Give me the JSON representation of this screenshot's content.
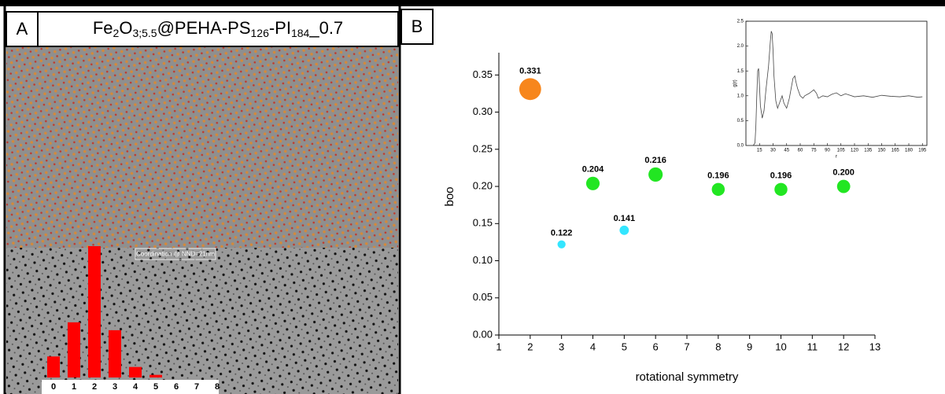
{
  "panels": {
    "a_label": "A",
    "a_title": [
      "Fe",
      "2",
      "O",
      "3;5.5",
      "@PEHA-PS",
      "126",
      "-PI",
      "184",
      "_0.7"
    ],
    "b_label": "B"
  },
  "chart_data": [
    {
      "type": "bar",
      "annotation": "Coordination @ NND=21nm",
      "categories": [
        "0",
        "1",
        "2",
        "3",
        "4",
        "5",
        "6",
        "7",
        "8"
      ],
      "values": [
        0.08,
        0.21,
        0.5,
        0.18,
        0.04,
        0.01,
        0,
        0,
        0
      ],
      "color": "#ff0000"
    },
    {
      "type": "scatter",
      "x_label": "rotational symmetry",
      "y_label": "boo",
      "x": [
        2,
        3,
        4,
        5,
        6,
        8,
        10,
        12
      ],
      "values": [
        0.331,
        0.122,
        0.204,
        0.141,
        0.216,
        0.196,
        0.196,
        0.2
      ],
      "value_labels": [
        "0.331",
        "0.122",
        "0.204",
        "0.141",
        "0.216",
        "0.196",
        "0.196",
        "0.200"
      ],
      "colors": [
        "#f7861c",
        "#33e6ff",
        "#22e622",
        "#33e6ff",
        "#22e622",
        "#22e622",
        "#22e622",
        "#22e622"
      ],
      "xlim": [
        1,
        13
      ],
      "xticks": [
        1,
        2,
        3,
        4,
        5,
        6,
        7,
        8,
        9,
        10,
        11,
        12,
        13
      ],
      "ylim": [
        0,
        0.38
      ],
      "yticks": [
        {
          "value": 0,
          "label": "0.00"
        },
        {
          "value": 0.05,
          "label": "0.05"
        },
        {
          "value": 0.1,
          "label": "0.10"
        },
        {
          "value": 0.15,
          "label": "0.15"
        },
        {
          "value": 0.2,
          "label": "0.20"
        },
        {
          "value": 0.25,
          "label": "0.25"
        },
        {
          "value": 0.3,
          "label": "0.30"
        },
        {
          "value": 0.35,
          "label": "0.35"
        }
      ]
    },
    {
      "type": "line",
      "x_label": "r",
      "y_label": "g(r)",
      "color": "#444444",
      "x": [
        0,
        5,
        8,
        10,
        11,
        12,
        13,
        14,
        15,
        16,
        18,
        20,
        22,
        25,
        27,
        28,
        29,
        30,
        31,
        33,
        35,
        38,
        40,
        42,
        45,
        48,
        50,
        52,
        54,
        55,
        57,
        60,
        63,
        65,
        70,
        75,
        78,
        80,
        85,
        90,
        95,
        100,
        105,
        110,
        120,
        130,
        140,
        150,
        160,
        170,
        180,
        190,
        195
      ],
      "values": [
        0,
        0,
        0,
        0.05,
        0.4,
        1.0,
        1.5,
        1.55,
        1.2,
        0.8,
        0.55,
        0.7,
        1.1,
        1.6,
        2.1,
        2.3,
        2.25,
        1.9,
        1.4,
        0.9,
        0.75,
        0.9,
        1.0,
        0.85,
        0.75,
        0.95,
        1.15,
        1.35,
        1.4,
        1.3,
        1.15,
        1.0,
        0.95,
        1.0,
        1.05,
        1.12,
        1.05,
        0.95,
        1.0,
        0.98,
        1.03,
        1.06,
        1.0,
        1.04,
        0.98,
        1.0,
        0.97,
        1.01,
        0.99,
        0.98,
        1.0,
        0.97,
        0.98
      ],
      "xlim": [
        0,
        200
      ],
      "xticks": [
        15,
        30,
        45,
        60,
        75,
        90,
        105,
        120,
        135,
        150,
        165,
        180,
        195
      ],
      "ylim": [
        0,
        2.5
      ],
      "yticks": [
        {
          "value": 0,
          "label": "0.0"
        },
        {
          "value": 0.5,
          "label": "0.5"
        },
        {
          "value": 1,
          "label": "1.0"
        },
        {
          "value": 1.5,
          "label": "1.5"
        },
        {
          "value": 2,
          "label": "2.0"
        },
        {
          "value": 2.5,
          "label": "2.5"
        }
      ]
    }
  ]
}
